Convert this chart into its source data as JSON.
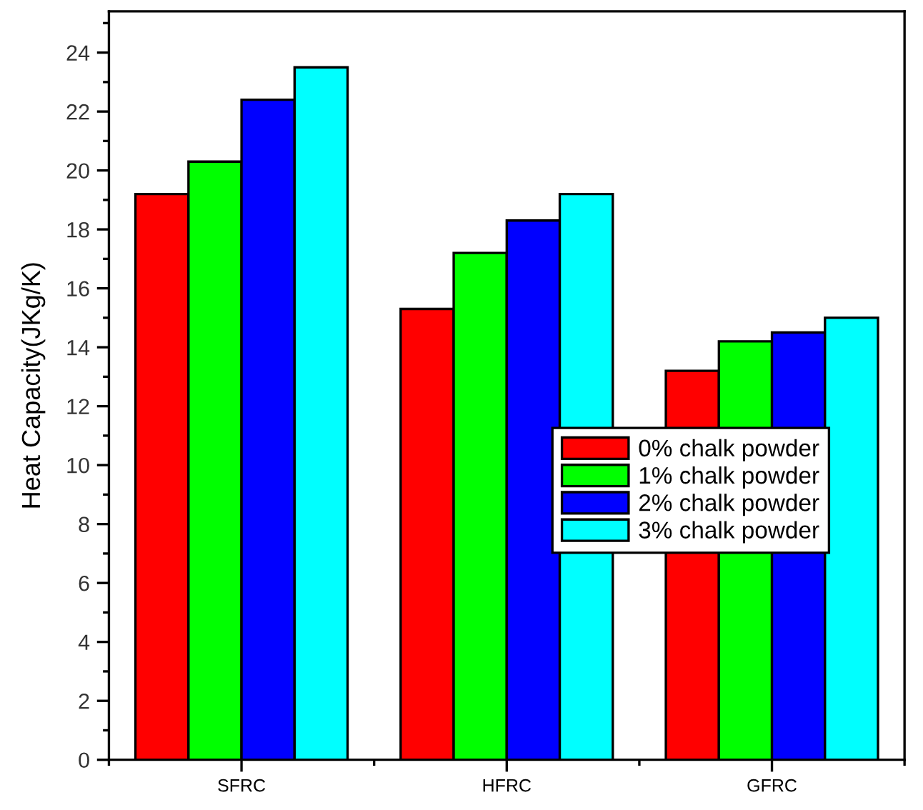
{
  "chart_data": {
    "type": "bar",
    "ylabel": "Heat Capacity(JKg/K)",
    "categories": [
      "SFRC",
      "HFRC",
      "GFRC"
    ],
    "series": [
      {
        "name": "0% chalk powder",
        "color": "#ff0000",
        "values": [
          19.2,
          15.3,
          13.2
        ]
      },
      {
        "name": "1% chalk powder",
        "color": "#00ff00",
        "values": [
          20.3,
          17.2,
          14.2
        ]
      },
      {
        "name": "2% chalk powder",
        "color": "#0000ff",
        "values": [
          22.4,
          18.3,
          14.5
        ]
      },
      {
        "name": "3% chalk powder",
        "color": "#00ffff",
        "values": [
          23.5,
          19.2,
          15.0
        ]
      }
    ],
    "ylim": [
      0,
      25.4
    ],
    "yticks": [
      0,
      2,
      4,
      6,
      8,
      10,
      12,
      14,
      16,
      18,
      20,
      22,
      24
    ],
    "grid": false,
    "legend": "center right"
  }
}
